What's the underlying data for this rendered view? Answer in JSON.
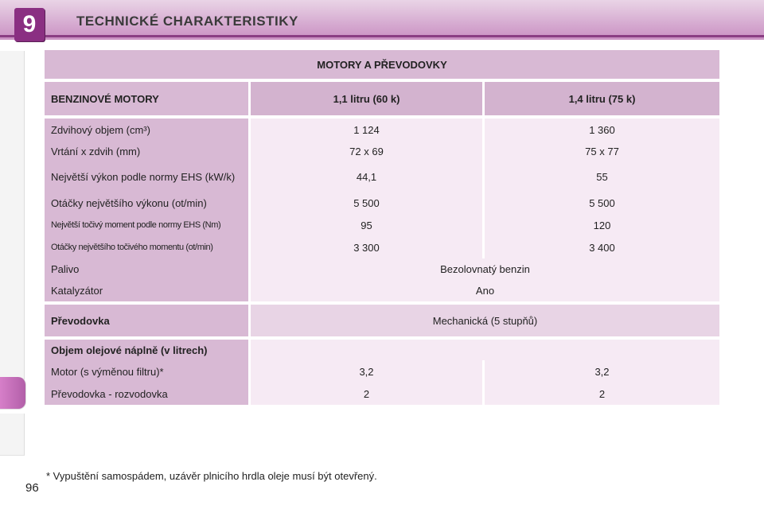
{
  "header": {
    "chapter": "9",
    "title": "TECHNICKÉ CHARAKTERISTIKY"
  },
  "table": {
    "title": "MOTORY A PŘEVODOVKY",
    "head": [
      "BENZINOVÉ MOTORY",
      "1,1 litru (60 k)",
      "1,4 litru (75 k)"
    ],
    "rows": [
      [
        "Zdvihový objem (cm³)",
        "1 124",
        "1 360"
      ],
      [
        "Vrtání x zdvih (mm)",
        "72 x 69",
        "75 x 77"
      ],
      [
        "Největší výkon podle normy EHS (kW/k)",
        "44,1",
        "55"
      ],
      [
        "Otáčky největšího výkonu (ot/min)",
        "5 500",
        "5 500"
      ],
      [
        "Největší točivý moment podle normy EHS (Nm)",
        "95",
        "120"
      ],
      [
        "Otáčky největšího točivého momentu (ot/min)",
        "3 300",
        "3 400"
      ]
    ],
    "fuel": {
      "label": "Palivo",
      "value": "Bezolovnatý benzin"
    },
    "catalyst": {
      "label": "Katalyzátor",
      "value": "Ano"
    },
    "gearbox": {
      "label": "Převodovka",
      "value": "Mechanická (5 stupňů)"
    },
    "oil": {
      "title": "Objem olejové náplně (v litrech)",
      "rows": [
        [
          "Motor (s výměnou filtru)*",
          "3,2",
          "3,2"
        ],
        [
          "Převodovka - rozvodovka",
          "2",
          "2"
        ]
      ]
    }
  },
  "footnote": "*  Vypuštění samospádem, uzávěr plnicího hrdla oleje musí být otevřený.",
  "page_number": "96"
}
